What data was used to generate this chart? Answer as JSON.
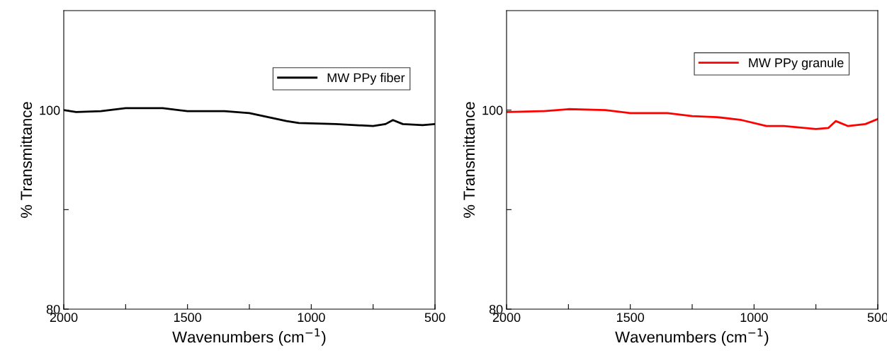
{
  "chart_data": [
    {
      "type": "line",
      "xlabel": "Wavenumbers (cm$^{−1}$)",
      "ylabel": "% Transmittance",
      "xlim": [
        2000,
        500
      ],
      "ylim": [
        80,
        110
      ],
      "xticks": [
        2000,
        {
          "value": 1750,
          "label": null
        },
        1500,
        {
          "value": 1250,
          "label": null
        },
        1000,
        {
          "value": 750,
          "label": null
        },
        500
      ],
      "yticks": [
        80,
        {
          "value": 90,
          "label": null
        },
        100
      ],
      "legend": "top right",
      "grid": false,
      "x": [
        2000,
        1950,
        1850,
        1750,
        1600,
        1500,
        1350,
        1250,
        1100,
        1050,
        900,
        750,
        700,
        670,
        630,
        550,
        500
      ],
      "series": [
        {
          "name": "MW PPy fiber",
          "color": "#000000",
          "values": [
            100.0,
            99.8,
            99.9,
            100.2,
            100.2,
            99.9,
            99.9,
            99.7,
            98.9,
            98.7,
            98.6,
            98.4,
            98.6,
            99.0,
            98.6,
            98.5,
            98.6
          ]
        }
      ]
    },
    {
      "type": "line",
      "xlabel": "Wavenumbers (cm$^{−1}$)",
      "ylabel": "% Transmittance",
      "xlim": [
        2000,
        500
      ],
      "ylim": [
        80,
        110
      ],
      "xticks": [
        2000,
        {
          "value": 1750,
          "label": null
        },
        1500,
        {
          "value": 1250,
          "label": null
        },
        1000,
        {
          "value": 750,
          "label": null
        },
        500
      ],
      "yticks": [
        80,
        {
          "value": 90,
          "label": null
        },
        100
      ],
      "legend": "top right",
      "grid": false,
      "x": [
        2000,
        1850,
        1750,
        1600,
        1500,
        1350,
        1250,
        1150,
        1050,
        950,
        880,
        750,
        700,
        670,
        620,
        550,
        500
      ],
      "series": [
        {
          "name": "MW PPy granule",
          "color": "#ff0000",
          "values": [
            99.8,
            99.9,
            100.1,
            100.0,
            99.7,
            99.7,
            99.4,
            99.3,
            99.0,
            98.4,
            98.4,
            98.1,
            98.2,
            98.9,
            98.4,
            98.6,
            99.1
          ]
        }
      ]
    }
  ]
}
